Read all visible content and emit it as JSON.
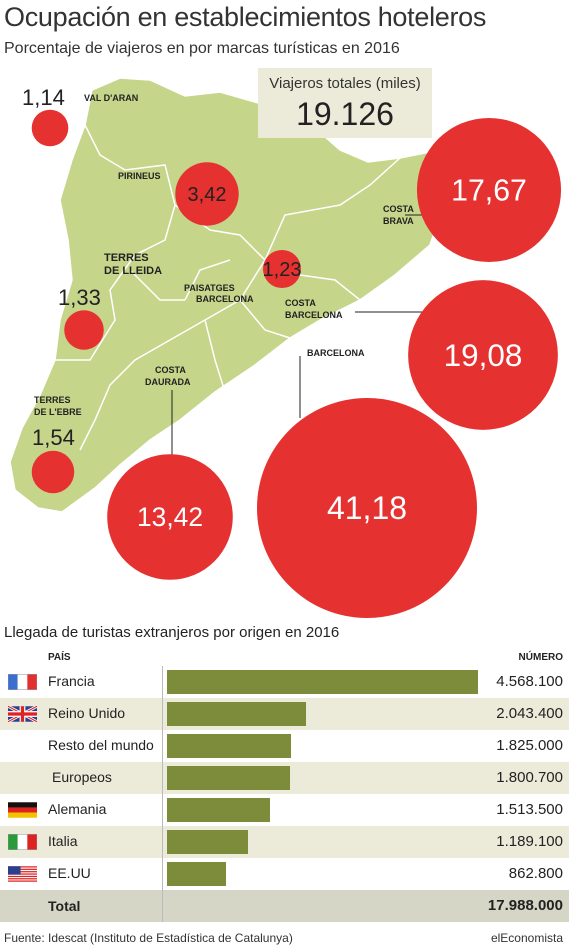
{
  "title": "Ocupación en establecimientos hoteleros",
  "subtitle": "Porcentaje de viajeros en por marcas turísticas en 2016",
  "total_box": {
    "label": "Viajeros totales (miles)",
    "value": "19.126"
  },
  "colors": {
    "bubble": "#e63131",
    "land": "#c5d58a",
    "bar": "#7d8c3a",
    "shade": "#ecebd9"
  },
  "chart_data": [
    {
      "type": "bubble-map",
      "title": "Ocupación en establecimientos hoteleros",
      "subtitle": "Porcentaje de viajeros en por marcas turísticas en 2016",
      "regions": [
        {
          "name": "VAL D'ARAN",
          "value": 1.14,
          "value_label": "1,14"
        },
        {
          "name": "PIRINEUS",
          "value": 3.42,
          "value_label": "3,42"
        },
        {
          "name": "TERRES DE LLEIDA",
          "value": 1.33,
          "value_label": "1,33"
        },
        {
          "name": "PAISATGES BARCELONA",
          "value": 1.23,
          "value_label": "1,23"
        },
        {
          "name": "COSTA BRAVA",
          "value": 17.67,
          "value_label": "17,67"
        },
        {
          "name": "COSTA BARCELONA",
          "value": 19.08,
          "value_label": "19,08"
        },
        {
          "name": "BARCELONA",
          "value": 41.18,
          "value_label": "41,18"
        },
        {
          "name": "COSTA DAURADA",
          "value": 13.42,
          "value_label": "13,42"
        },
        {
          "name": "TERRES DE L'EBRE",
          "value": 1.54,
          "value_label": "1,54"
        }
      ]
    },
    {
      "type": "bar",
      "title": "Llegada de turistas extranjeros por origen en 2016",
      "column_headers": [
        "PAÍS",
        "NÚMERO"
      ],
      "categories": [
        "Francia",
        "Reino Unido",
        "Resto del mundo",
        "Europeos",
        "Alemania",
        "Italia",
        "EE.UU"
      ],
      "values": [
        4568100,
        2043400,
        1825000,
        1800700,
        1513500,
        1189100,
        862800
      ],
      "value_labels": [
        "4.568.100",
        "2.043.400",
        "1.825.000",
        "1.800.700",
        "1.513.500",
        "1.189.100",
        "862.800"
      ],
      "flags": [
        "france-flag-icon",
        "uk-flag-icon",
        "",
        "",
        "germany-flag-icon",
        "italy-flag-icon",
        "usa-flag-icon"
      ],
      "total_label": "Total",
      "total_value": "17.988.000"
    }
  ],
  "footer": {
    "source": "Fuente: Idescat (Instituto de Estadística de Catalunya)",
    "brand": "elEconomista"
  }
}
